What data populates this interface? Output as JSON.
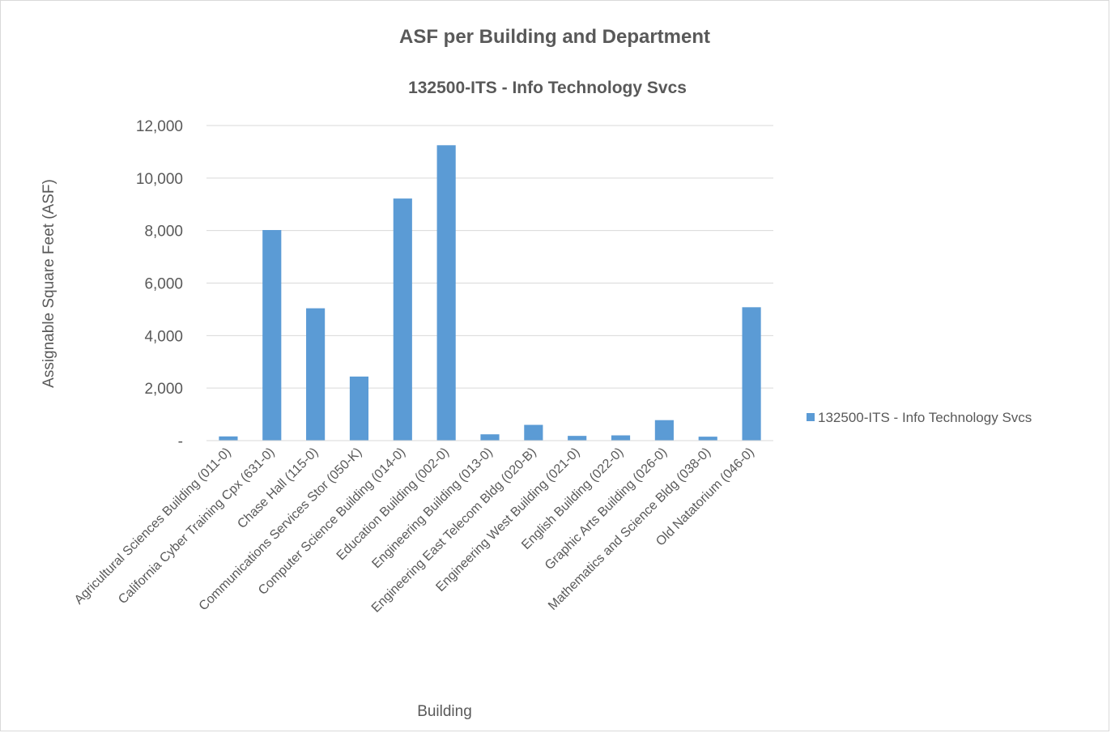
{
  "chart_data": {
    "type": "bar",
    "title": "ASF per Building and Department",
    "subtitle": "132500-ITS - Info Technology Svcs",
    "xlabel": "Building",
    "ylabel": "Assignable Square Feet (ASF)",
    "ylim": [
      0,
      12000
    ],
    "yticks": [
      "-",
      "2,000",
      "4,000",
      "6,000",
      "8,000",
      "10,000",
      "12,000"
    ],
    "grid": true,
    "legend_position": "right",
    "categories": [
      "Agricultural Sciences Building (011-0)",
      "California Cyber Training Cpx (631-0)",
      "Chase Hall (115-0)",
      "Communications Services Stor (050-K)",
      "Computer Science Building (014-0)",
      "Education Building (002-0)",
      "Engineering Building (013-0)",
      "Engineering East Telecom Bldg (020-B)",
      "Engineering West Building (021-0)",
      "English Building (022-0)",
      "Graphic Arts Building (026-0)",
      "Mathematics and Science Bldg (038-0)",
      "Old Natatorium (046-0)"
    ],
    "series": [
      {
        "name": "132500-ITS - Info Technology Svcs",
        "color": "#5b9bd5",
        "values": [
          160,
          8020,
          5040,
          2440,
          9220,
          11250,
          240,
          600,
          180,
          200,
          780,
          150,
          5080
        ]
      }
    ]
  }
}
